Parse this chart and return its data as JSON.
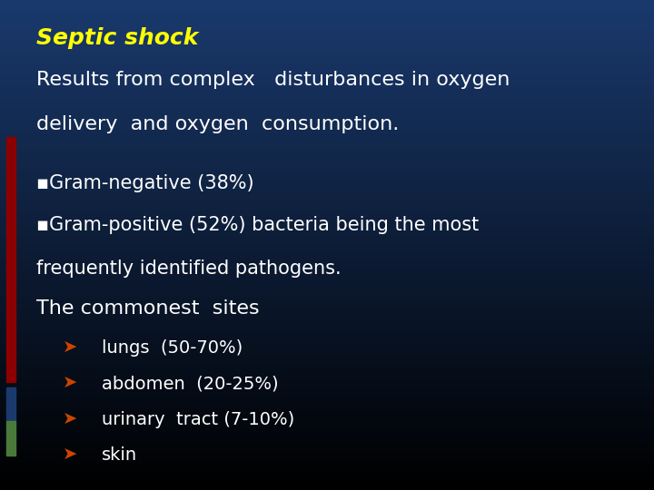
{
  "title": "Septic shock",
  "title_color": "#FFFF00",
  "title_style": "italic",
  "title_fontsize": 18,
  "bg_top_color": "#000000",
  "bg_bottom_color": "#1a3a6e",
  "left_bar_colors": [
    "#8B0000",
    "#1a3a6e",
    "#4a7a3a"
  ],
  "text_color": "#FFFFFF",
  "arrow_color": "#CC4400",
  "line1": "Results from complex   disturbances in oxygen",
  "line2": "delivery  and oxygen  consumption.",
  "bullet_char": "▪",
  "arrow_char": "➤",
  "bullet1": "Gram-negative (38%)",
  "bullet2_line1": "Gram-positive (52%) bacteria being the most",
  "bullet2_line2": "frequently identified pathogens.",
  "line_common": "The commonest  sites",
  "sub1": "lungs  (50-70%)",
  "sub2": "abdomen  (20-25%)",
  "sub3": "urinary  tract (7-10%)",
  "sub4": "skin",
  "font_main": 16,
  "font_sub": 14,
  "font_bullet": 15
}
